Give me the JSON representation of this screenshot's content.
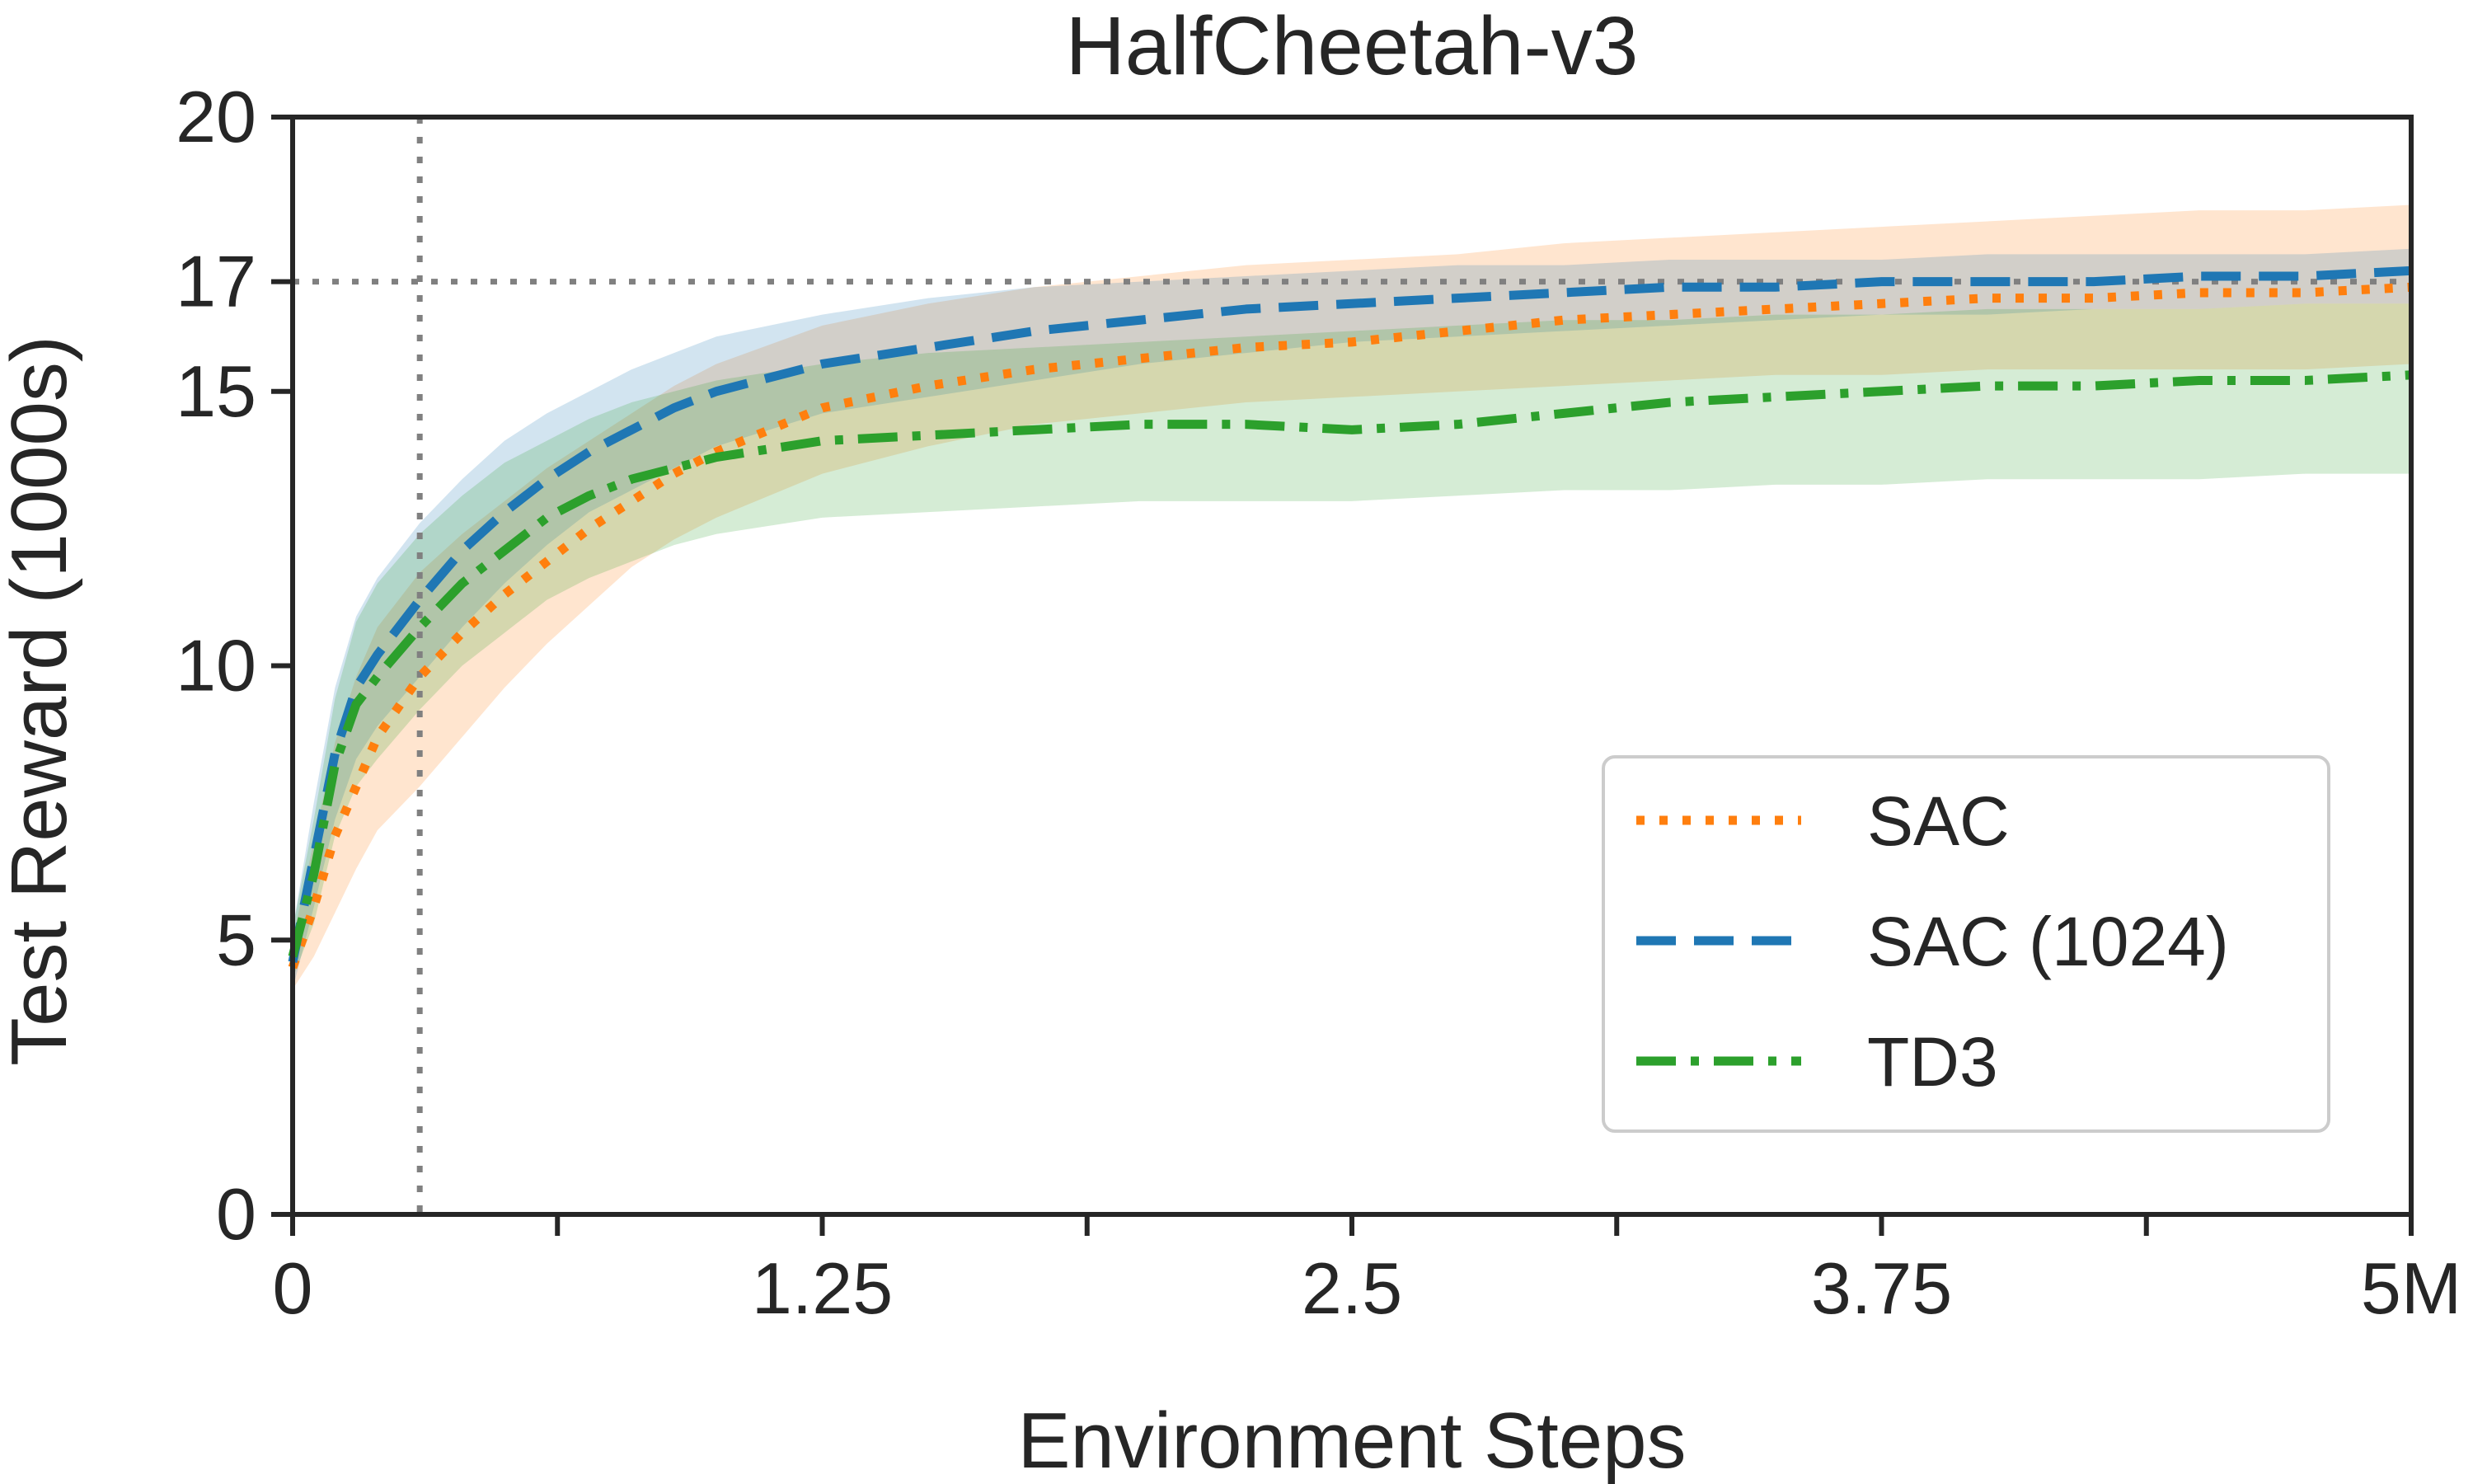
{
  "chart_data": {
    "type": "line",
    "title": "HalfCheetah-v3",
    "xlabel": "Environment Steps",
    "ylabel": "Test Reward (1000s)",
    "xlim": [
      0,
      5
    ],
    "ylim": [
      0,
      20
    ],
    "x_ticks": [
      0,
      0.625,
      1.25,
      1.875,
      2.5,
      3.125,
      3.75,
      4.375,
      5
    ],
    "x_tick_labels": [
      "0",
      "",
      "1.25",
      "",
      "2.5",
      "",
      "3.75",
      "",
      "5M"
    ],
    "y_ticks": [
      0,
      5,
      10,
      15,
      17,
      20
    ],
    "y_tick_labels": [
      "0",
      "5",
      "10",
      "15",
      "17",
      "20"
    ],
    "reference_lines": {
      "x": 0.3,
      "y": 17
    },
    "grid": false,
    "legend_position": "lower-right",
    "x": [
      0,
      0.05,
      0.1,
      0.15,
      0.2,
      0.3,
      0.4,
      0.5,
      0.6,
      0.7,
      0.8,
      0.9,
      1.0,
      1.25,
      1.5,
      1.75,
      2.0,
      2.25,
      2.5,
      2.75,
      3.0,
      3.25,
      3.5,
      3.75,
      4.0,
      4.25,
      4.5,
      4.75,
      5.0
    ],
    "series": [
      {
        "name": "SAC",
        "color": "#ff7f0e",
        "dash": "dotted",
        "values": [
          4.5,
          5.6,
          6.9,
          7.8,
          8.7,
          9.8,
          10.6,
          11.3,
          11.9,
          12.5,
          13.0,
          13.5,
          13.9,
          14.7,
          15.1,
          15.4,
          15.6,
          15.8,
          15.9,
          16.1,
          16.3,
          16.4,
          16.5,
          16.6,
          16.7,
          16.7,
          16.8,
          16.8,
          16.9
        ],
        "upper": [
          5.0,
          6.8,
          8.6,
          9.8,
          10.7,
          11.7,
          12.4,
          13.0,
          13.6,
          14.1,
          14.6,
          15.1,
          15.5,
          16.2,
          16.6,
          16.9,
          17.1,
          17.3,
          17.4,
          17.5,
          17.7,
          17.8,
          17.9,
          18.0,
          18.1,
          18.2,
          18.3,
          18.3,
          18.4
        ],
        "lower": [
          4.1,
          4.7,
          5.5,
          6.3,
          7.0,
          7.8,
          8.7,
          9.6,
          10.4,
          11.1,
          11.8,
          12.3,
          12.7,
          13.5,
          14.0,
          14.4,
          14.6,
          14.8,
          14.9,
          15.0,
          15.1,
          15.2,
          15.3,
          15.3,
          15.4,
          15.4,
          15.4,
          15.4,
          15.5
        ]
      },
      {
        "name": "SAC (1024)",
        "color": "#1f77b4",
        "dash": "dashed",
        "values": [
          4.6,
          6.5,
          8.4,
          9.6,
          10.2,
          11.2,
          12.1,
          12.8,
          13.4,
          13.9,
          14.3,
          14.7,
          15.0,
          15.5,
          15.8,
          16.1,
          16.3,
          16.5,
          16.6,
          16.7,
          16.8,
          16.9,
          16.9,
          17.0,
          17.0,
          17.0,
          17.1,
          17.1,
          17.2
        ],
        "upper": [
          5.2,
          7.5,
          9.6,
          10.9,
          11.6,
          12.6,
          13.4,
          14.1,
          14.6,
          15.0,
          15.4,
          15.7,
          16.0,
          16.4,
          16.7,
          16.9,
          17.0,
          17.1,
          17.2,
          17.3,
          17.3,
          17.4,
          17.4,
          17.4,
          17.5,
          17.5,
          17.5,
          17.5,
          17.6
        ],
        "lower": [
          4.1,
          5.6,
          7.2,
          8.3,
          8.9,
          9.8,
          10.7,
          11.5,
          12.2,
          12.8,
          13.2,
          13.6,
          14.0,
          14.6,
          14.9,
          15.2,
          15.5,
          15.7,
          15.9,
          16.0,
          16.1,
          16.2,
          16.3,
          16.4,
          16.4,
          16.5,
          16.5,
          16.6,
          16.6
        ]
      },
      {
        "name": "TD3",
        "color": "#2ca02c",
        "dash": "dashdot",
        "values": [
          4.7,
          6.2,
          8.2,
          9.3,
          9.8,
          10.7,
          11.5,
          12.1,
          12.7,
          13.1,
          13.4,
          13.6,
          13.8,
          14.1,
          14.2,
          14.3,
          14.4,
          14.4,
          14.3,
          14.4,
          14.6,
          14.8,
          14.9,
          15.0,
          15.1,
          15.1,
          15.2,
          15.2,
          15.3
        ],
        "upper": [
          5.2,
          7.2,
          9.4,
          10.8,
          11.5,
          12.4,
          13.1,
          13.7,
          14.1,
          14.5,
          14.8,
          15.0,
          15.2,
          15.5,
          15.7,
          15.8,
          15.9,
          16.0,
          16.1,
          16.2,
          16.3,
          16.3,
          16.4,
          16.4,
          16.5,
          16.5,
          16.5,
          16.6,
          16.6
        ],
        "lower": [
          4.3,
          5.3,
          6.9,
          7.8,
          8.3,
          9.2,
          10.0,
          10.6,
          11.2,
          11.6,
          11.9,
          12.2,
          12.4,
          12.7,
          12.8,
          12.9,
          13.0,
          13.0,
          13.0,
          13.1,
          13.2,
          13.2,
          13.3,
          13.3,
          13.4,
          13.4,
          13.4,
          13.5,
          13.5
        ]
      }
    ]
  }
}
